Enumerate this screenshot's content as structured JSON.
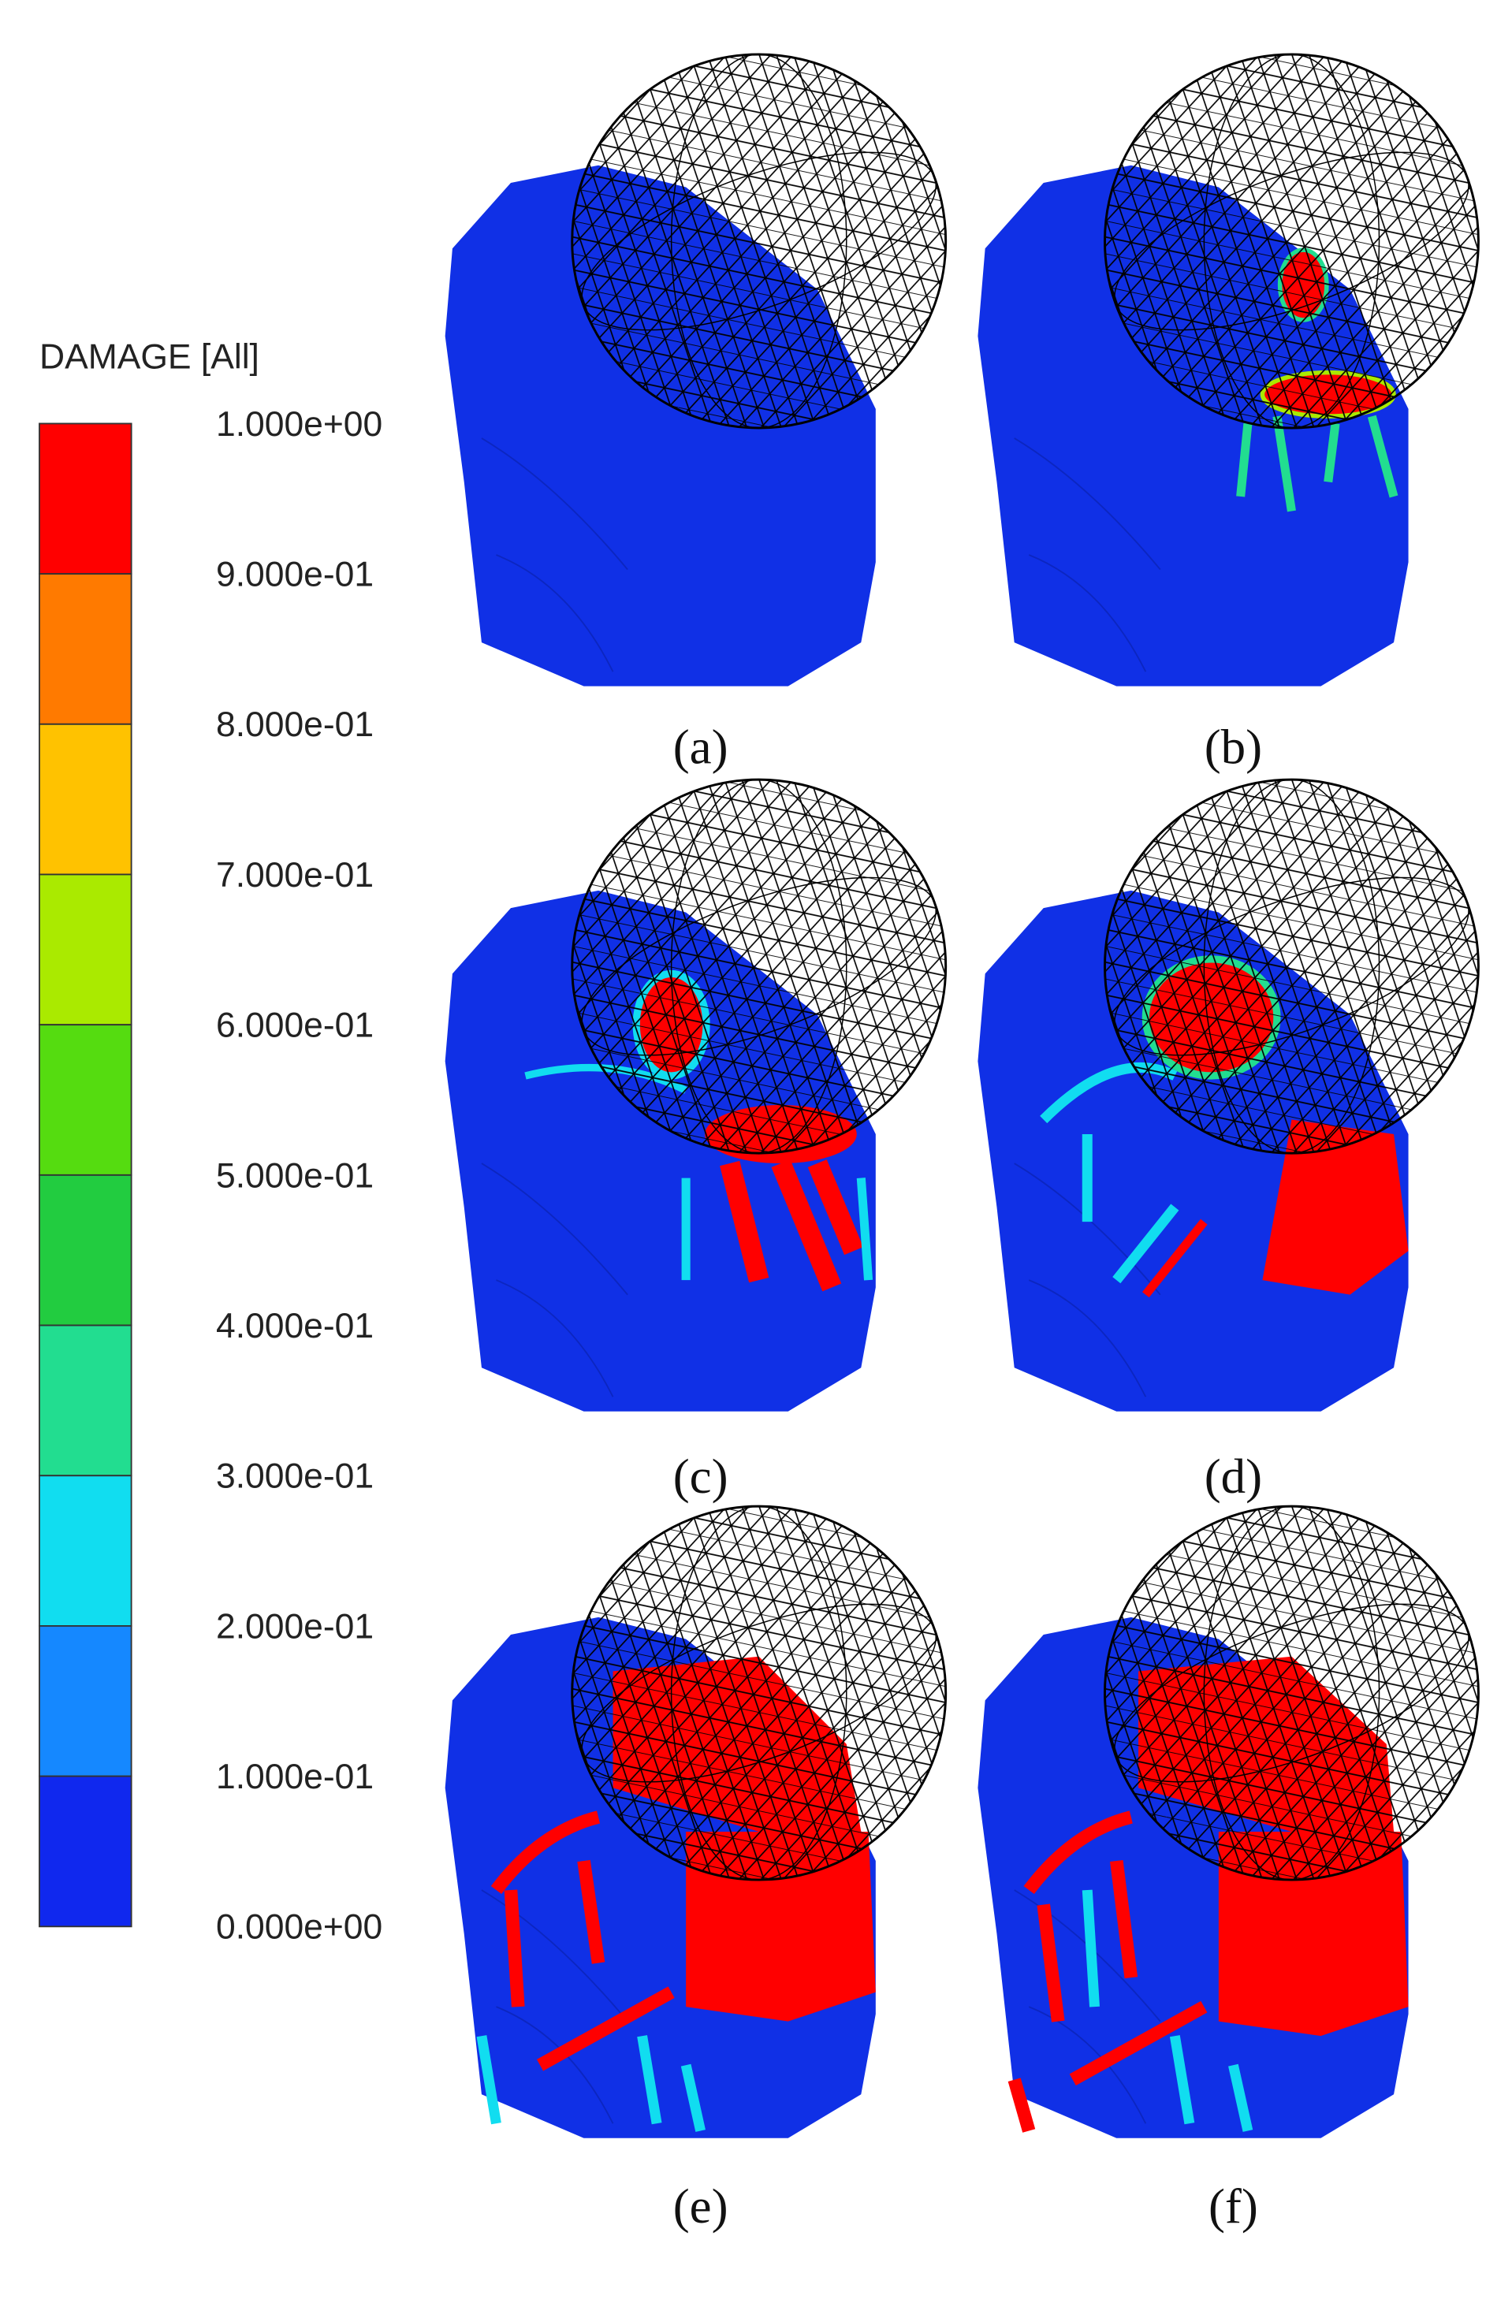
{
  "legend": {
    "title": "DAMAGE [All]",
    "labels": [
      "1.000e+00",
      "9.000e-01",
      "8.000e-01",
      "7.000e-01",
      "6.000e-01",
      "5.000e-01",
      "4.000e-01",
      "3.000e-01",
      "2.000e-01",
      "1.000e-01",
      "0.000e+00"
    ]
  },
  "panels": [
    {
      "label": "(a)"
    },
    {
      "label": "(b)"
    },
    {
      "label": "(c)"
    },
    {
      "label": "(d)"
    },
    {
      "label": "(e)"
    },
    {
      "label": "(f)"
    }
  ]
}
